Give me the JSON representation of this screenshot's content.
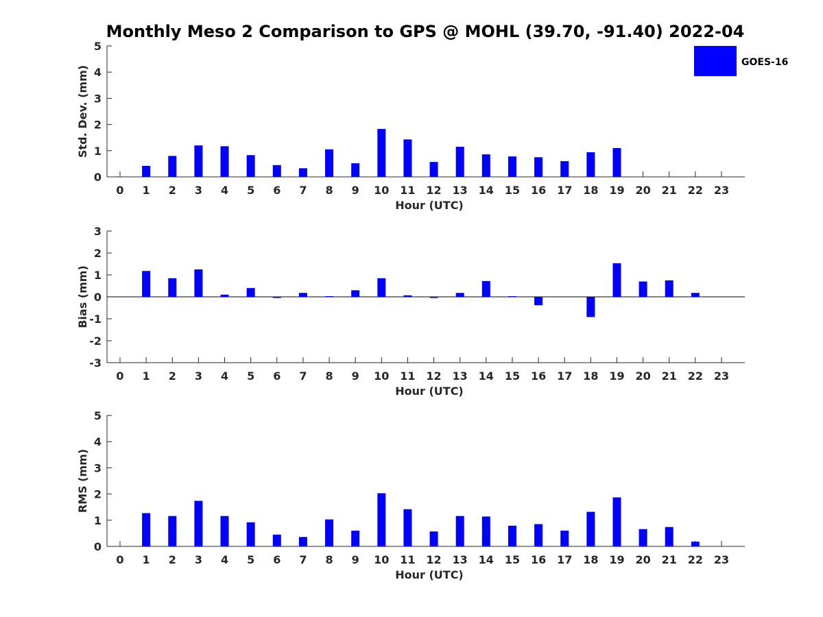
{
  "title": "Monthly Meso 2 Comparison to GPS @ MOHL (39.70, -91.40) 2022-04",
  "colors": {
    "bar": "#0000ff",
    "axis": "#262626"
  },
  "legend": {
    "label": "GOES-16",
    "placement": "top-right"
  },
  "chart_data": [
    {
      "type": "bar",
      "ylabel": "Std. Dev. (mm)",
      "xlabel": "Hour (UTC)",
      "ylim": [
        0,
        5
      ],
      "yticks": [
        0,
        1,
        2,
        3,
        4,
        5
      ],
      "categories": [
        "0",
        "1",
        "2",
        "3",
        "4",
        "5",
        "6",
        "7",
        "8",
        "9",
        "10",
        "11",
        "12",
        "13",
        "14",
        "15",
        "16",
        "17",
        "18",
        "19",
        "20",
        "21",
        "22",
        "23"
      ],
      "series": [
        {
          "name": "GOES-16",
          "values": [
            null,
            0.42,
            0.8,
            1.2,
            1.17,
            0.83,
            0.45,
            0.33,
            1.05,
            0.52,
            1.83,
            1.43,
            0.57,
            1.15,
            0.86,
            0.78,
            0.75,
            0.6,
            0.94,
            1.1,
            null,
            null,
            null,
            null
          ]
        }
      ]
    },
    {
      "type": "bar",
      "ylabel": "Bias (mm)",
      "xlabel": "Hour (UTC)",
      "ylim": [
        -3,
        3
      ],
      "yticks": [
        -3,
        -2,
        -1,
        0,
        1,
        2,
        3
      ],
      "categories": [
        "0",
        "1",
        "2",
        "3",
        "4",
        "5",
        "6",
        "7",
        "8",
        "9",
        "10",
        "11",
        "12",
        "13",
        "14",
        "15",
        "16",
        "17",
        "18",
        "19",
        "20",
        "21",
        "22",
        "23"
      ],
      "series": [
        {
          "name": "GOES-16",
          "values": [
            null,
            1.18,
            0.85,
            1.25,
            0.1,
            0.4,
            -0.05,
            0.18,
            0.03,
            0.3,
            0.85,
            0.07,
            -0.05,
            0.18,
            0.72,
            0.03,
            -0.38,
            null,
            -0.92,
            1.53,
            0.7,
            0.75,
            0.18,
            null
          ]
        }
      ]
    },
    {
      "type": "bar",
      "ylabel": "RMS (mm)",
      "xlabel": "Hour (UTC)",
      "ylim": [
        0,
        5
      ],
      "yticks": [
        0,
        1,
        2,
        3,
        4,
        5
      ],
      "categories": [
        "0",
        "1",
        "2",
        "3",
        "4",
        "5",
        "6",
        "7",
        "8",
        "9",
        "10",
        "11",
        "12",
        "13",
        "14",
        "15",
        "16",
        "17",
        "18",
        "19",
        "20",
        "21",
        "22",
        "23"
      ],
      "series": [
        {
          "name": "GOES-16",
          "values": [
            null,
            1.27,
            1.16,
            1.74,
            1.16,
            0.92,
            0.45,
            0.36,
            1.03,
            0.6,
            2.03,
            1.42,
            0.57,
            1.16,
            1.14,
            0.79,
            0.85,
            0.6,
            1.32,
            1.87,
            0.66,
            0.74,
            0.18,
            null
          ]
        }
      ]
    }
  ]
}
